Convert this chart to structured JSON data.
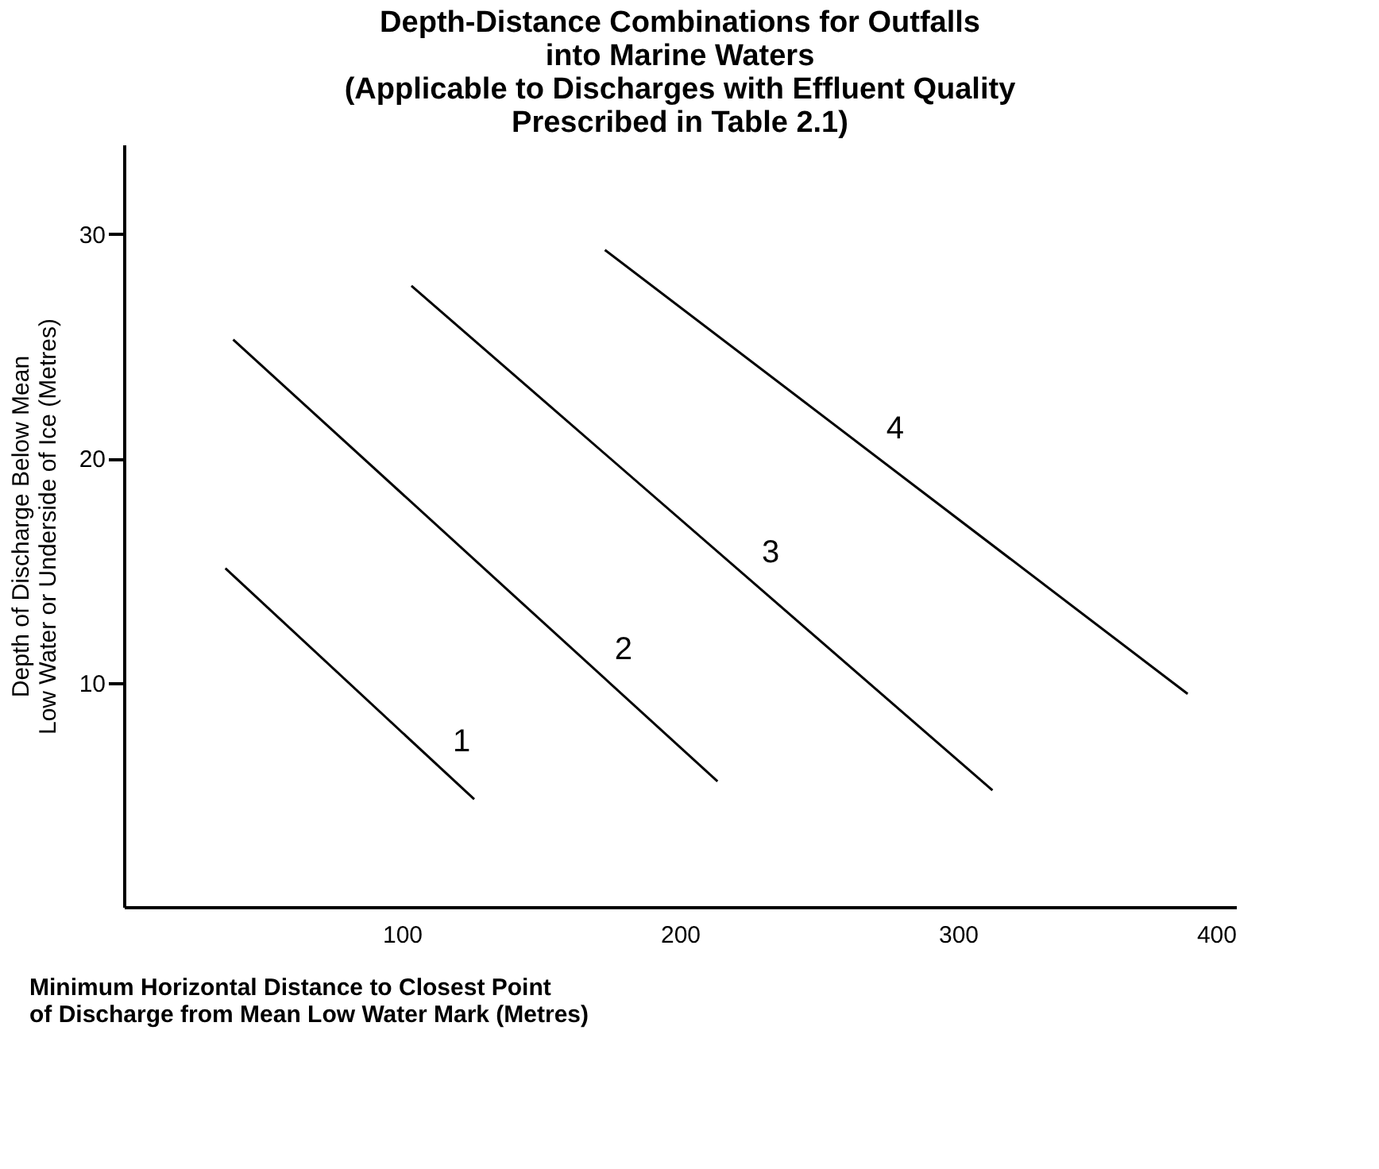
{
  "chart_data": {
    "type": "line",
    "title": "Depth-Distance Combinations for Outfalls\ninto Marine Waters\n(Applicable to Discharges with Effluent Quality\nPrescribed in Table 2.1)",
    "xlabel": "Minimum Horizontal Distance to Closest Point\nof Discharge from Mean Low Water Mark (Metres)",
    "ylabel": "Depth of Discharge Below Mean\nLow Water or Underside of Ice (Metres)",
    "series": [
      {
        "name": "1",
        "color": "#000000",
        "x": [
          36.5,
          126
        ],
        "values": [
          15.1,
          4.8
        ]
      },
      {
        "name": "2",
        "color": "#000000",
        "x": [
          39.3,
          213.5
        ],
        "values": [
          25.3,
          5.6
        ]
      },
      {
        "name": "3",
        "color": "#000000",
        "x": [
          103.4,
          312.4
        ],
        "values": [
          27.7,
          5.2
        ]
      },
      {
        "name": "4",
        "color": "#000000",
        "x": [
          173,
          382.6
        ],
        "values": [
          29.3,
          9.5
        ]
      }
    ],
    "xlim": [
      0,
      400
    ],
    "ylim": [
      0,
      34
    ],
    "xticks": [
      100,
      200,
      300,
      400
    ],
    "yticks": [
      10,
      20,
      30
    ],
    "grid": false,
    "marker": "none",
    "line_style": "solid"
  }
}
